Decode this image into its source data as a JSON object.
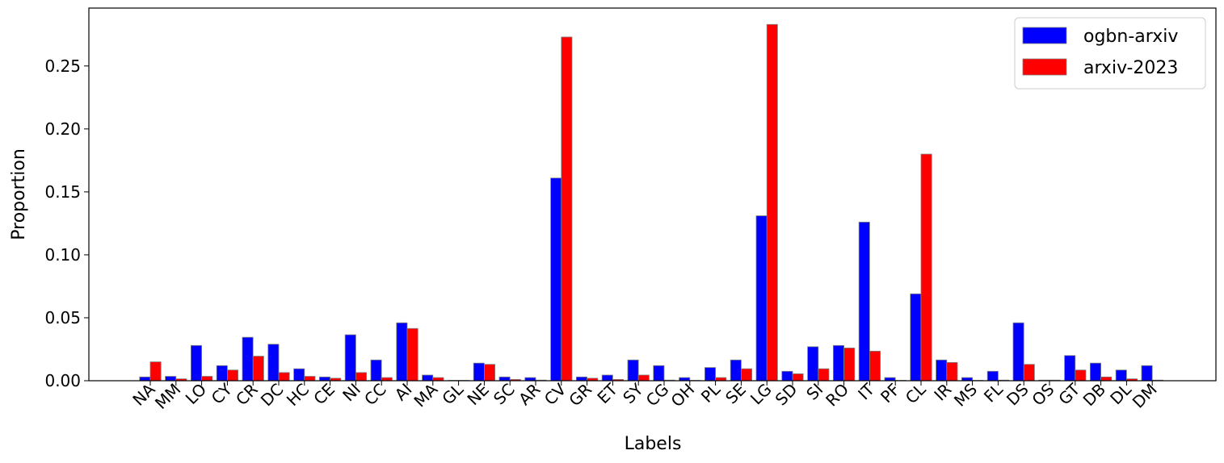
{
  "chart_data": {
    "type": "bar",
    "xlabel": "Labels",
    "ylabel": "Proportion",
    "ylim": [
      0,
      0.296
    ],
    "yticks": [
      "0.00",
      "0.05",
      "0.10",
      "0.15",
      "0.20",
      "0.25"
    ],
    "legend_position": "top-right",
    "categories": [
      "NA",
      "MM",
      "LO",
      "CY",
      "CR",
      "DC",
      "HC",
      "CE",
      "NI",
      "CC",
      "AI",
      "MA",
      "GL",
      "NE",
      "SC",
      "AR",
      "CV",
      "GR",
      "ET",
      "SY",
      "CG",
      "OH",
      "PL",
      "SE",
      "LG",
      "SD",
      "SI",
      "RO",
      "IT",
      "PF",
      "CL",
      "IR",
      "MS",
      "FL",
      "DS",
      "OS",
      "GT",
      "DB",
      "DL",
      "DM"
    ],
    "series": [
      {
        "name": "ogbn-arxiv",
        "color": "#0000ff",
        "values": [
          0.003,
          0.0035,
          0.028,
          0.012,
          0.0345,
          0.029,
          0.0095,
          0.003,
          0.0365,
          0.0165,
          0.046,
          0.0045,
          0.0003,
          0.014,
          0.003,
          0.0025,
          0.161,
          0.003,
          0.0045,
          0.0165,
          0.012,
          0.0025,
          0.0105,
          0.0165,
          0.131,
          0.0075,
          0.027,
          0.028,
          0.126,
          0.0025,
          0.069,
          0.0165,
          0.0025,
          0.0075,
          0.046,
          0.0005,
          0.02,
          0.014,
          0.0085,
          0.012
        ]
      },
      {
        "name": "arxiv-2023",
        "color": "#ff0000",
        "values": [
          0.015,
          0.0015,
          0.0035,
          0.0085,
          0.0195,
          0.0065,
          0.0035,
          0.002,
          0.0065,
          0.0025,
          0.0415,
          0.0025,
          0.0003,
          0.013,
          0.001,
          0.0005,
          0.273,
          0.002,
          0.001,
          0.0045,
          0.0005,
          0.0003,
          0.0025,
          0.0095,
          0.283,
          0.0055,
          0.0095,
          0.026,
          0.0235,
          0.0003,
          0.18,
          0.0145,
          0.0003,
          0.0005,
          0.013,
          0.0005,
          0.0085,
          0.003,
          0.0015,
          0.0005
        ]
      }
    ]
  }
}
